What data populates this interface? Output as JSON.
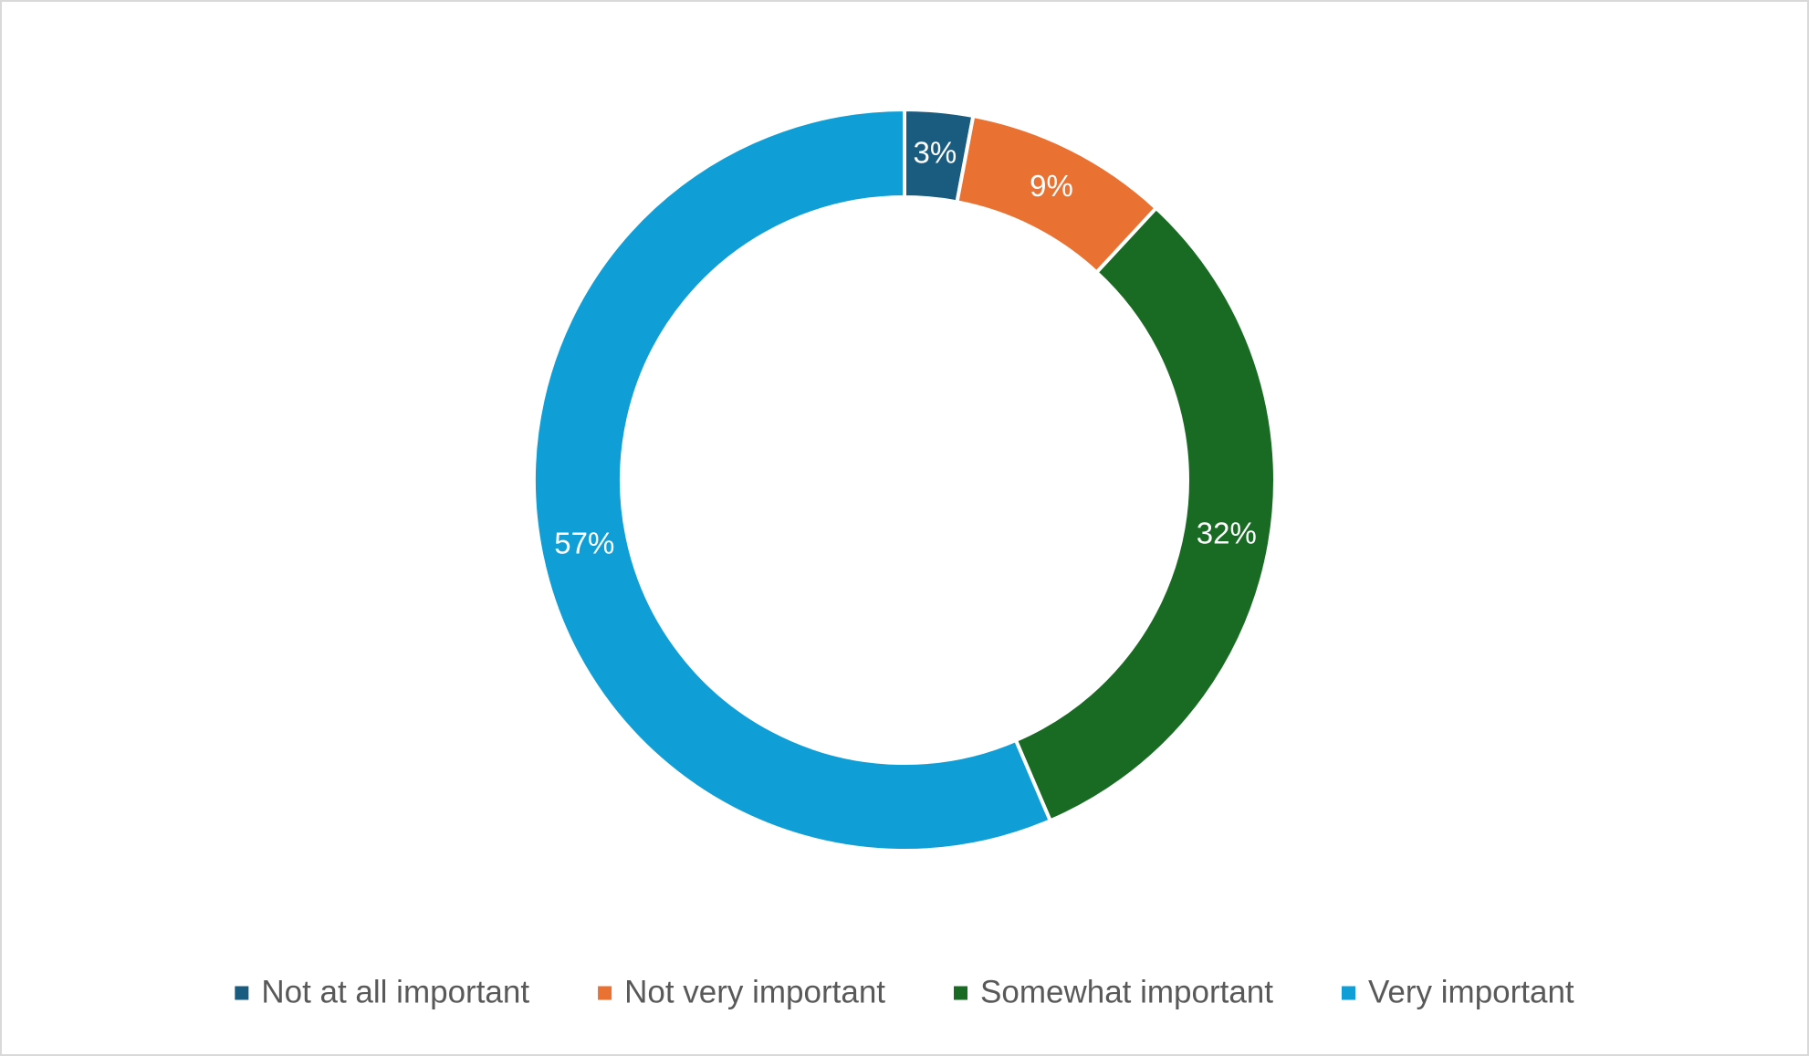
{
  "chart_data": {
    "type": "donut",
    "categories": [
      "Not at all important",
      "Not very important",
      "Somewhat important",
      "Very important"
    ],
    "values": [
      3,
      9,
      32,
      57
    ],
    "value_labels": [
      "3%",
      "9%",
      "32%",
      "57%"
    ],
    "colors": [
      "#1a5c80",
      "#e97132",
      "#196b24",
      "#0f9ed5"
    ],
    "legend": "bottom"
  }
}
